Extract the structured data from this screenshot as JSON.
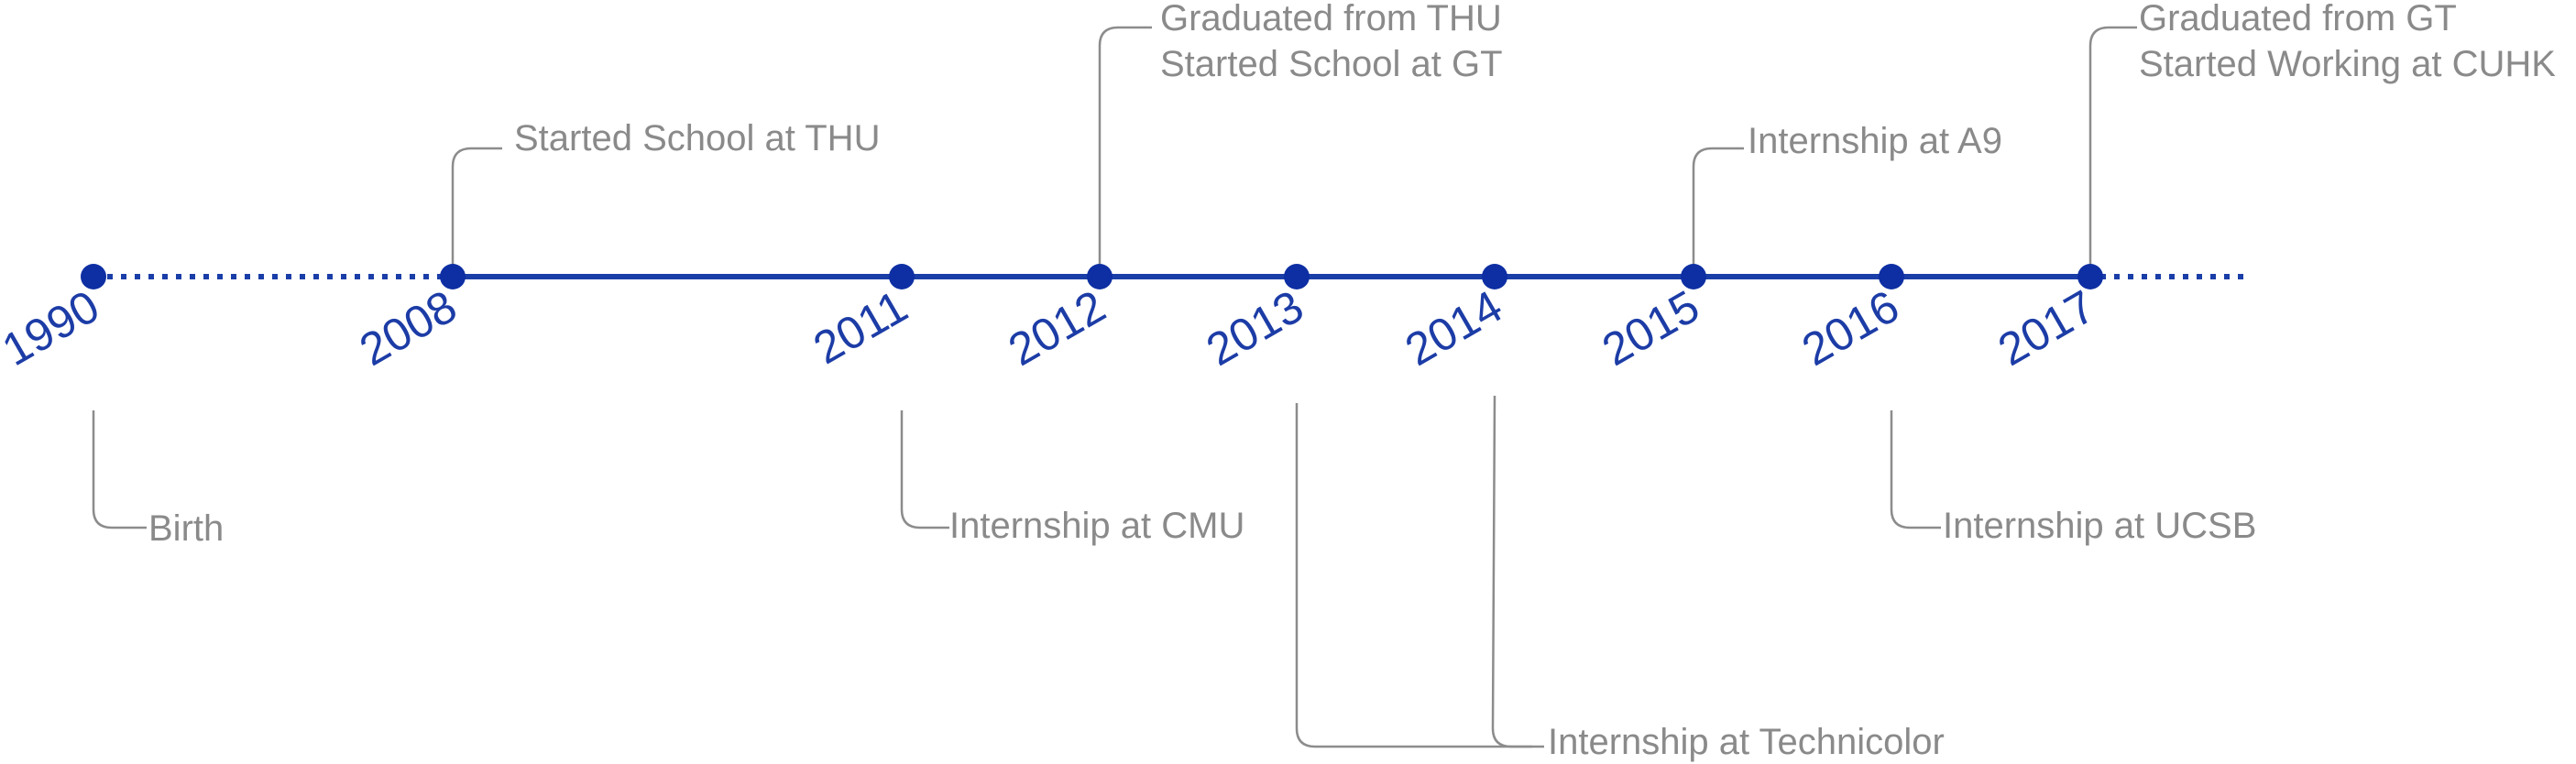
{
  "timeline": {
    "colors": {
      "axis": "#1a3ea8",
      "dot": "#0e2fa3",
      "year_text": "#1c3ca6",
      "event_text": "#8a8a8a",
      "connector": "#8c8c8c"
    },
    "years": [
      "1990",
      "2008",
      "2011",
      "2012",
      "2013",
      "2014",
      "2015",
      "2016",
      "2017"
    ],
    "events": {
      "birth": "Birth",
      "started_thu": "Started School at THU",
      "internship_cmu": "Internship at CMU",
      "graduated_thu": "Graduated from THU",
      "started_gt": "Started School at GT",
      "internship_technicolor": "Internship at Technicolor",
      "internship_a9": "Internship at A9",
      "internship_ucsb": "Internship at UCSB",
      "graduated_gt": "Graduated from GT",
      "started_cuhk": "Started Working at CUHK"
    }
  }
}
